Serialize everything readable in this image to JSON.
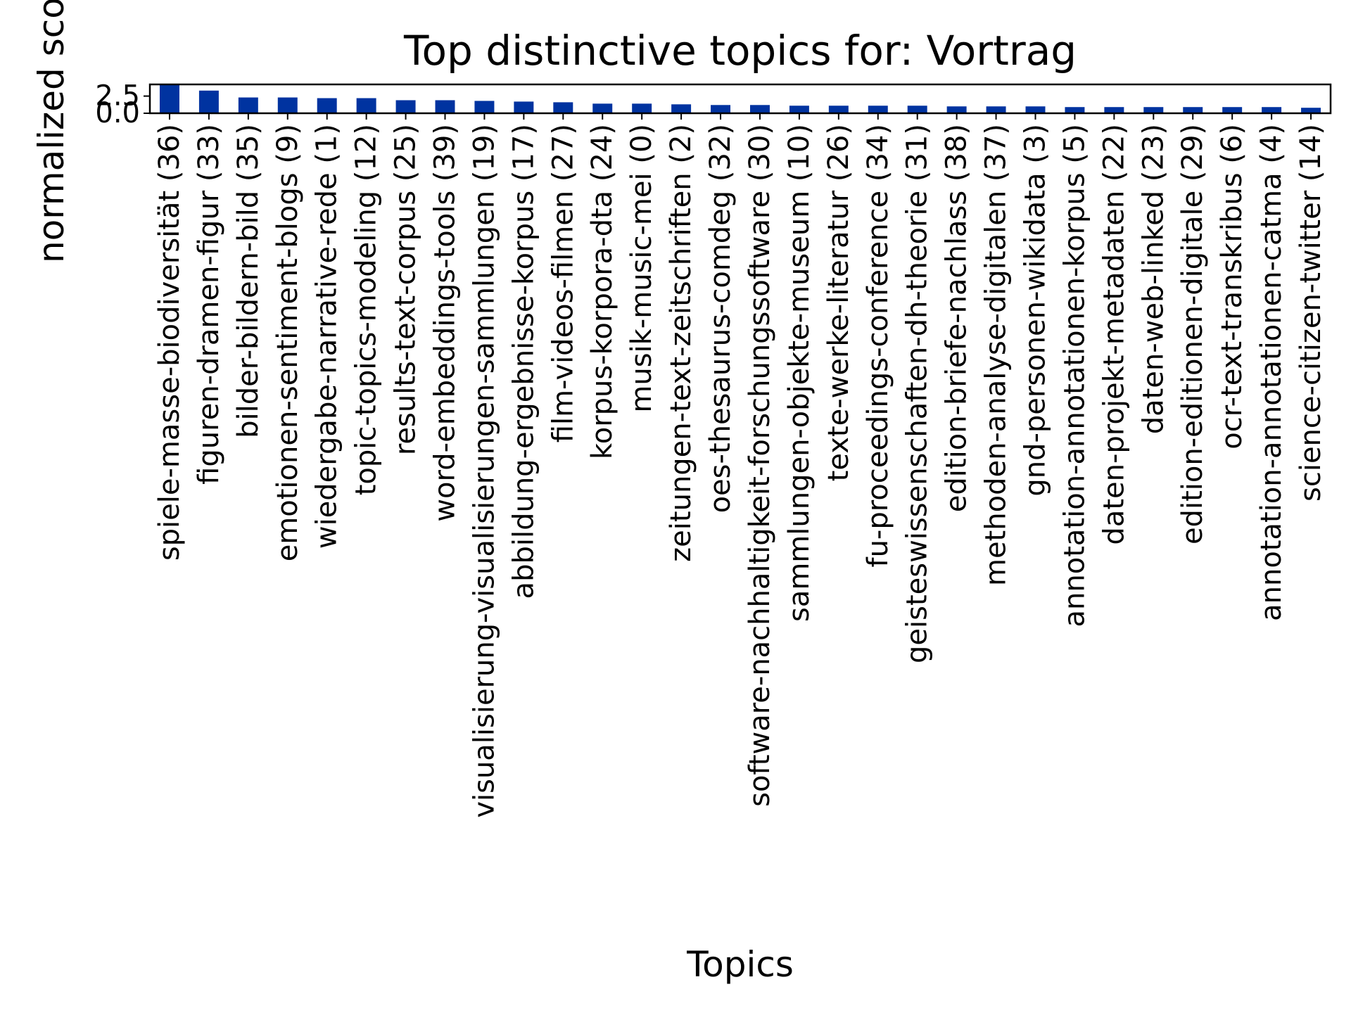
{
  "chart_data": {
    "type": "bar",
    "title": "Top distinctive topics for: Vortrag",
    "xlabel": "Topics",
    "ylabel": "normalized score",
    "ylim": [
      0,
      4.2
    ],
    "yticks": [
      0.0,
      2.5
    ],
    "ytick_labels": [
      "0.0",
      "2.5"
    ],
    "bar_color": "#0033a0",
    "grid": false,
    "legend": "none",
    "categories": [
      "spiele-masse-biodiversität (36)",
      "figuren-dramen-figur (33)",
      "bilder-bildern-bild (35)",
      "emotionen-sentiment-blogs (9)",
      "wiedergabe-narrative-rede (1)",
      "topic-topics-modeling (12)",
      "results-text-corpus (25)",
      "word-embeddings-tools (39)",
      "visualisierung-visualisierungen-sammlungen (19)",
      "abbildung-ergebnisse-korpus (17)",
      "film-videos-filmen (27)",
      "korpus-korpora-dta (24)",
      "musik-music-mei (0)",
      "zeitungen-text-zeitschriften (2)",
      "oes-thesaurus-comdeg (32)",
      "software-nachhaltigkeit-forschungssoftware (30)",
      "sammlungen-objekte-museum (10)",
      "texte-werke-literatur (26)",
      "fu-proceedings-conference (34)",
      "geisteswissenschaften-dh-theorie (31)",
      "edition-briefe-nachlass (38)",
      "methoden-analyse-digitalen (37)",
      "gnd-personen-wikidata (3)",
      "annotation-annotationen-korpus (5)",
      "daten-projekt-metadaten (22)",
      "daten-web-linked (23)",
      "edition-editionen-digitale (29)",
      "ocr-text-transkribus (6)",
      "annotation-annotationen-catma (4)",
      "science-citizen-twitter (14)"
    ],
    "values": [
      4.1,
      3.3,
      2.3,
      2.3,
      2.2,
      2.2,
      1.9,
      1.9,
      1.8,
      1.7,
      1.6,
      1.4,
      1.4,
      1.3,
      1.2,
      1.2,
      1.1,
      1.1,
      1.1,
      1.1,
      1.0,
      1.0,
      1.0,
      0.9,
      0.9,
      0.9,
      0.9,
      0.9,
      0.9,
      0.8
    ]
  }
}
